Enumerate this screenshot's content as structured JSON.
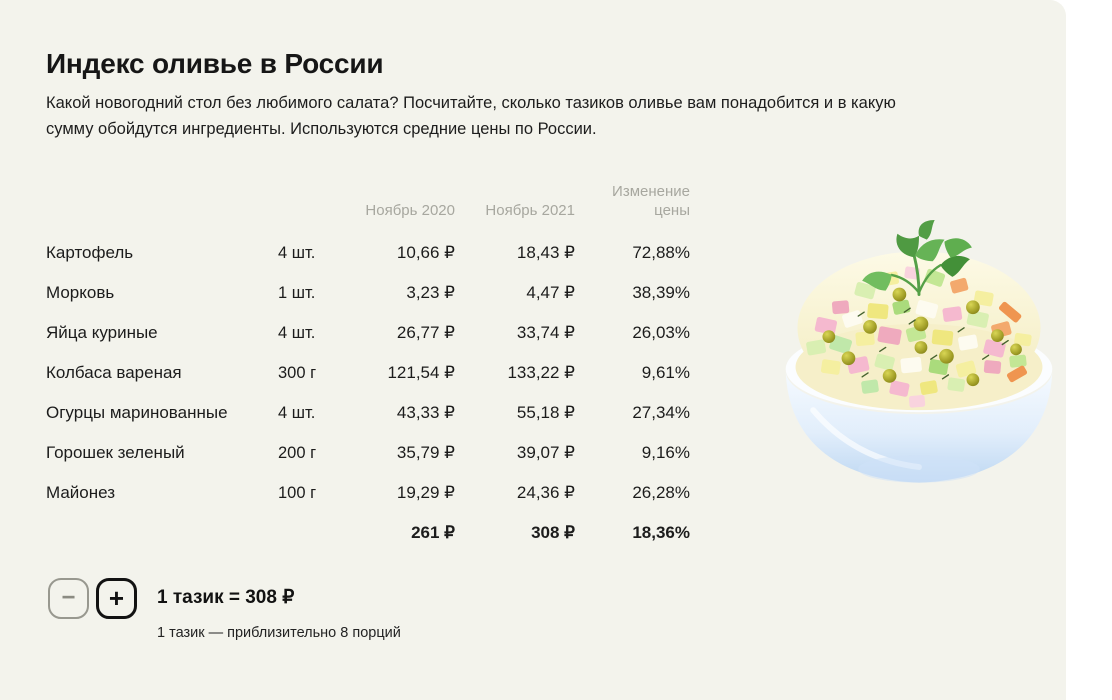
{
  "page": {
    "title": "Индекс оливье в России",
    "subtitle": "Какой новогодний стол без любимого салата? Посчитайте, сколько тазиков оливье вам понадобится и в какую сумму обойдутся ингредиенты. Используются средние цены по России."
  },
  "table": {
    "headers": {
      "col2020": "Ноябрь 2020",
      "col2021": "Ноябрь 2021",
      "change": "Изменение цены"
    },
    "rows": [
      {
        "name": "Картофель",
        "qty": "4 шт.",
        "p2020": "10,66 ₽",
        "p2021": "18,43 ₽",
        "change": "72,88%"
      },
      {
        "name": "Морковь",
        "qty": "1 шт.",
        "p2020": "3,23 ₽",
        "p2021": "4,47 ₽",
        "change": "38,39%"
      },
      {
        "name": "Яйца куриные",
        "qty": "4 шт.",
        "p2020": "26,77 ₽",
        "p2021": "33,74 ₽",
        "change": "26,03%"
      },
      {
        "name": "Колбаса вареная",
        "qty": "300 г",
        "p2020": "121,54 ₽",
        "p2021": "133,22 ₽",
        "change": "9,61%"
      },
      {
        "name": "Огурцы маринованные",
        "qty": "4 шт.",
        "p2020": "43,33 ₽",
        "p2021": "55,18 ₽",
        "change": "27,34%"
      },
      {
        "name": "Горошек зеленый",
        "qty": "200 г",
        "p2020": "35,79 ₽",
        "p2021": "39,07 ₽",
        "change": "9,16%"
      },
      {
        "name": "Майонез",
        "qty": "100 г",
        "p2020": "19,29 ₽",
        "p2021": "24,36 ₽",
        "change": "26,28%"
      }
    ],
    "total": {
      "p2020": "261 ₽",
      "p2021": "308 ₽",
      "change": "18,36%"
    }
  },
  "stepper": {
    "minus_label": "−",
    "plus_label": "+",
    "result": "1 тазик = 308 ₽",
    "note": "1 тазик — приблизительно 8 порций"
  },
  "illustration": {
    "name": "olivier-salad-bowl"
  },
  "colors": {
    "card_background": "#f3f3ec",
    "page_background": "#ffffff",
    "text": "#1c1c1c",
    "muted_header": "#a7a79f"
  }
}
